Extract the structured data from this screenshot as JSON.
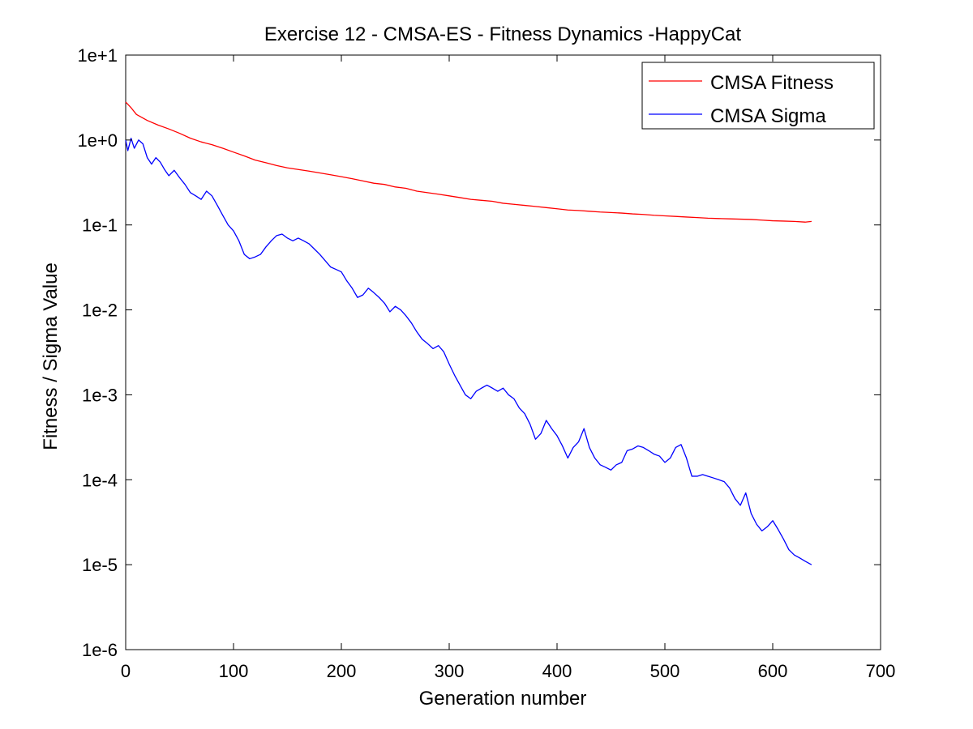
{
  "chart_data": {
    "type": "line",
    "title": "Exercise 12 - CMSA-ES - Fitness Dynamics -HappyCat",
    "xlabel": "Generation number",
    "ylabel": "Fitness / Sigma Value",
    "xlim": [
      0,
      700
    ],
    "ylim": [
      1e-06,
      10
    ],
    "yscale": "log",
    "x_ticks": [
      0,
      100,
      200,
      300,
      400,
      500,
      600,
      700
    ],
    "x_tick_labels": [
      "0",
      "100",
      "200",
      "300",
      "400",
      "500",
      "600",
      "700"
    ],
    "y_ticks": [
      1e-06,
      1e-05,
      0.0001,
      0.001,
      0.01,
      0.1,
      1,
      10
    ],
    "y_tick_labels": [
      "1e-6",
      "1e-5",
      "1e-4",
      "1e-3",
      "1e-2",
      "1e-1",
      "1e+0",
      "1e+1"
    ],
    "grid": false,
    "legend_position": "top-right",
    "series": [
      {
        "name": "CMSA Fitness",
        "color": "#ff0000",
        "x": [
          0,
          5,
          10,
          20,
          30,
          40,
          50,
          60,
          70,
          80,
          90,
          100,
          110,
          120,
          130,
          140,
          150,
          160,
          170,
          180,
          190,
          200,
          210,
          220,
          230,
          240,
          250,
          260,
          270,
          280,
          290,
          300,
          310,
          320,
          330,
          340,
          350,
          360,
          370,
          380,
          390,
          400,
          410,
          420,
          430,
          440,
          450,
          460,
          470,
          480,
          490,
          500,
          510,
          520,
          530,
          540,
          550,
          560,
          570,
          580,
          590,
          600,
          610,
          620,
          630,
          636
        ],
        "y": [
          2.8,
          2.4,
          2.0,
          1.7,
          1.5,
          1.35,
          1.2,
          1.05,
          0.95,
          0.88,
          0.8,
          0.72,
          0.65,
          0.58,
          0.54,
          0.5,
          0.47,
          0.45,
          0.43,
          0.41,
          0.39,
          0.37,
          0.35,
          0.33,
          0.31,
          0.3,
          0.28,
          0.27,
          0.25,
          0.24,
          0.23,
          0.22,
          0.21,
          0.2,
          0.195,
          0.19,
          0.18,
          0.175,
          0.17,
          0.165,
          0.16,
          0.155,
          0.15,
          0.148,
          0.145,
          0.142,
          0.14,
          0.138,
          0.135,
          0.133,
          0.13,
          0.128,
          0.126,
          0.124,
          0.122,
          0.12,
          0.119,
          0.118,
          0.117,
          0.116,
          0.114,
          0.112,
          0.111,
          0.11,
          0.108,
          0.11
        ]
      },
      {
        "name": "CMSA Sigma",
        "color": "#0000ff",
        "x": [
          0,
          2,
          5,
          8,
          12,
          16,
          20,
          24,
          28,
          32,
          36,
          40,
          45,
          50,
          55,
          60,
          65,
          70,
          75,
          80,
          85,
          90,
          95,
          100,
          105,
          110,
          115,
          120,
          125,
          130,
          135,
          140,
          145,
          150,
          155,
          160,
          165,
          170,
          175,
          180,
          185,
          190,
          195,
          200,
          205,
          210,
          215,
          220,
          225,
          230,
          235,
          240,
          245,
          250,
          255,
          260,
          265,
          270,
          275,
          280,
          285,
          290,
          295,
          300,
          305,
          310,
          315,
          320,
          325,
          330,
          335,
          340,
          345,
          350,
          355,
          360,
          365,
          370,
          375,
          380,
          385,
          390,
          395,
          400,
          405,
          410,
          415,
          420,
          425,
          430,
          435,
          440,
          445,
          450,
          455,
          460,
          465,
          470,
          475,
          480,
          485,
          490,
          495,
          500,
          505,
          510,
          515,
          520,
          525,
          530,
          535,
          540,
          545,
          550,
          555,
          560,
          565,
          570,
          575,
          580,
          585,
          590,
          595,
          600,
          605,
          610,
          615,
          620,
          625,
          630,
          636
        ],
        "y": [
          1.0,
          0.75,
          1.05,
          0.8,
          1.0,
          0.9,
          0.62,
          0.52,
          0.62,
          0.55,
          0.45,
          0.38,
          0.44,
          0.36,
          0.3,
          0.24,
          0.22,
          0.2,
          0.25,
          0.22,
          0.17,
          0.13,
          0.1,
          0.085,
          0.065,
          0.045,
          0.04,
          0.042,
          0.045,
          0.055,
          0.065,
          0.075,
          0.078,
          0.07,
          0.065,
          0.07,
          0.065,
          0.06,
          0.052,
          0.045,
          0.038,
          0.032,
          0.03,
          0.028,
          0.022,
          0.018,
          0.014,
          0.015,
          0.018,
          0.016,
          0.014,
          0.012,
          0.0095,
          0.011,
          0.01,
          0.0085,
          0.007,
          0.0055,
          0.0045,
          0.004,
          0.0035,
          0.0038,
          0.0032,
          0.0023,
          0.0017,
          0.0013,
          0.001,
          0.0009,
          0.0011,
          0.0012,
          0.0013,
          0.0012,
          0.0011,
          0.0012,
          0.001,
          0.0009,
          0.0007,
          0.0006,
          0.00045,
          0.0003,
          0.00035,
          0.0005,
          0.0004,
          0.00033,
          0.00025,
          0.00018,
          0.00024,
          0.00028,
          0.0004,
          0.00024,
          0.00018,
          0.00015,
          0.00014,
          0.00013,
          0.00015,
          0.00016,
          0.00022,
          0.00023,
          0.00025,
          0.00024,
          0.00022,
          0.0002,
          0.00019,
          0.00016,
          0.00018,
          0.00024,
          0.00026,
          0.00018,
          0.00011,
          0.00011,
          0.000115,
          0.00011,
          0.000105,
          0.0001,
          9.5e-05,
          8e-05,
          6e-05,
          5e-05,
          7e-05,
          4e-05,
          3e-05,
          2.5e-05,
          2.8e-05,
          3.3e-05,
          2.6e-05,
          2e-05,
          1.5e-05,
          1.3e-05,
          1.2e-05,
          1.1e-05,
          1e-05
        ]
      }
    ]
  }
}
